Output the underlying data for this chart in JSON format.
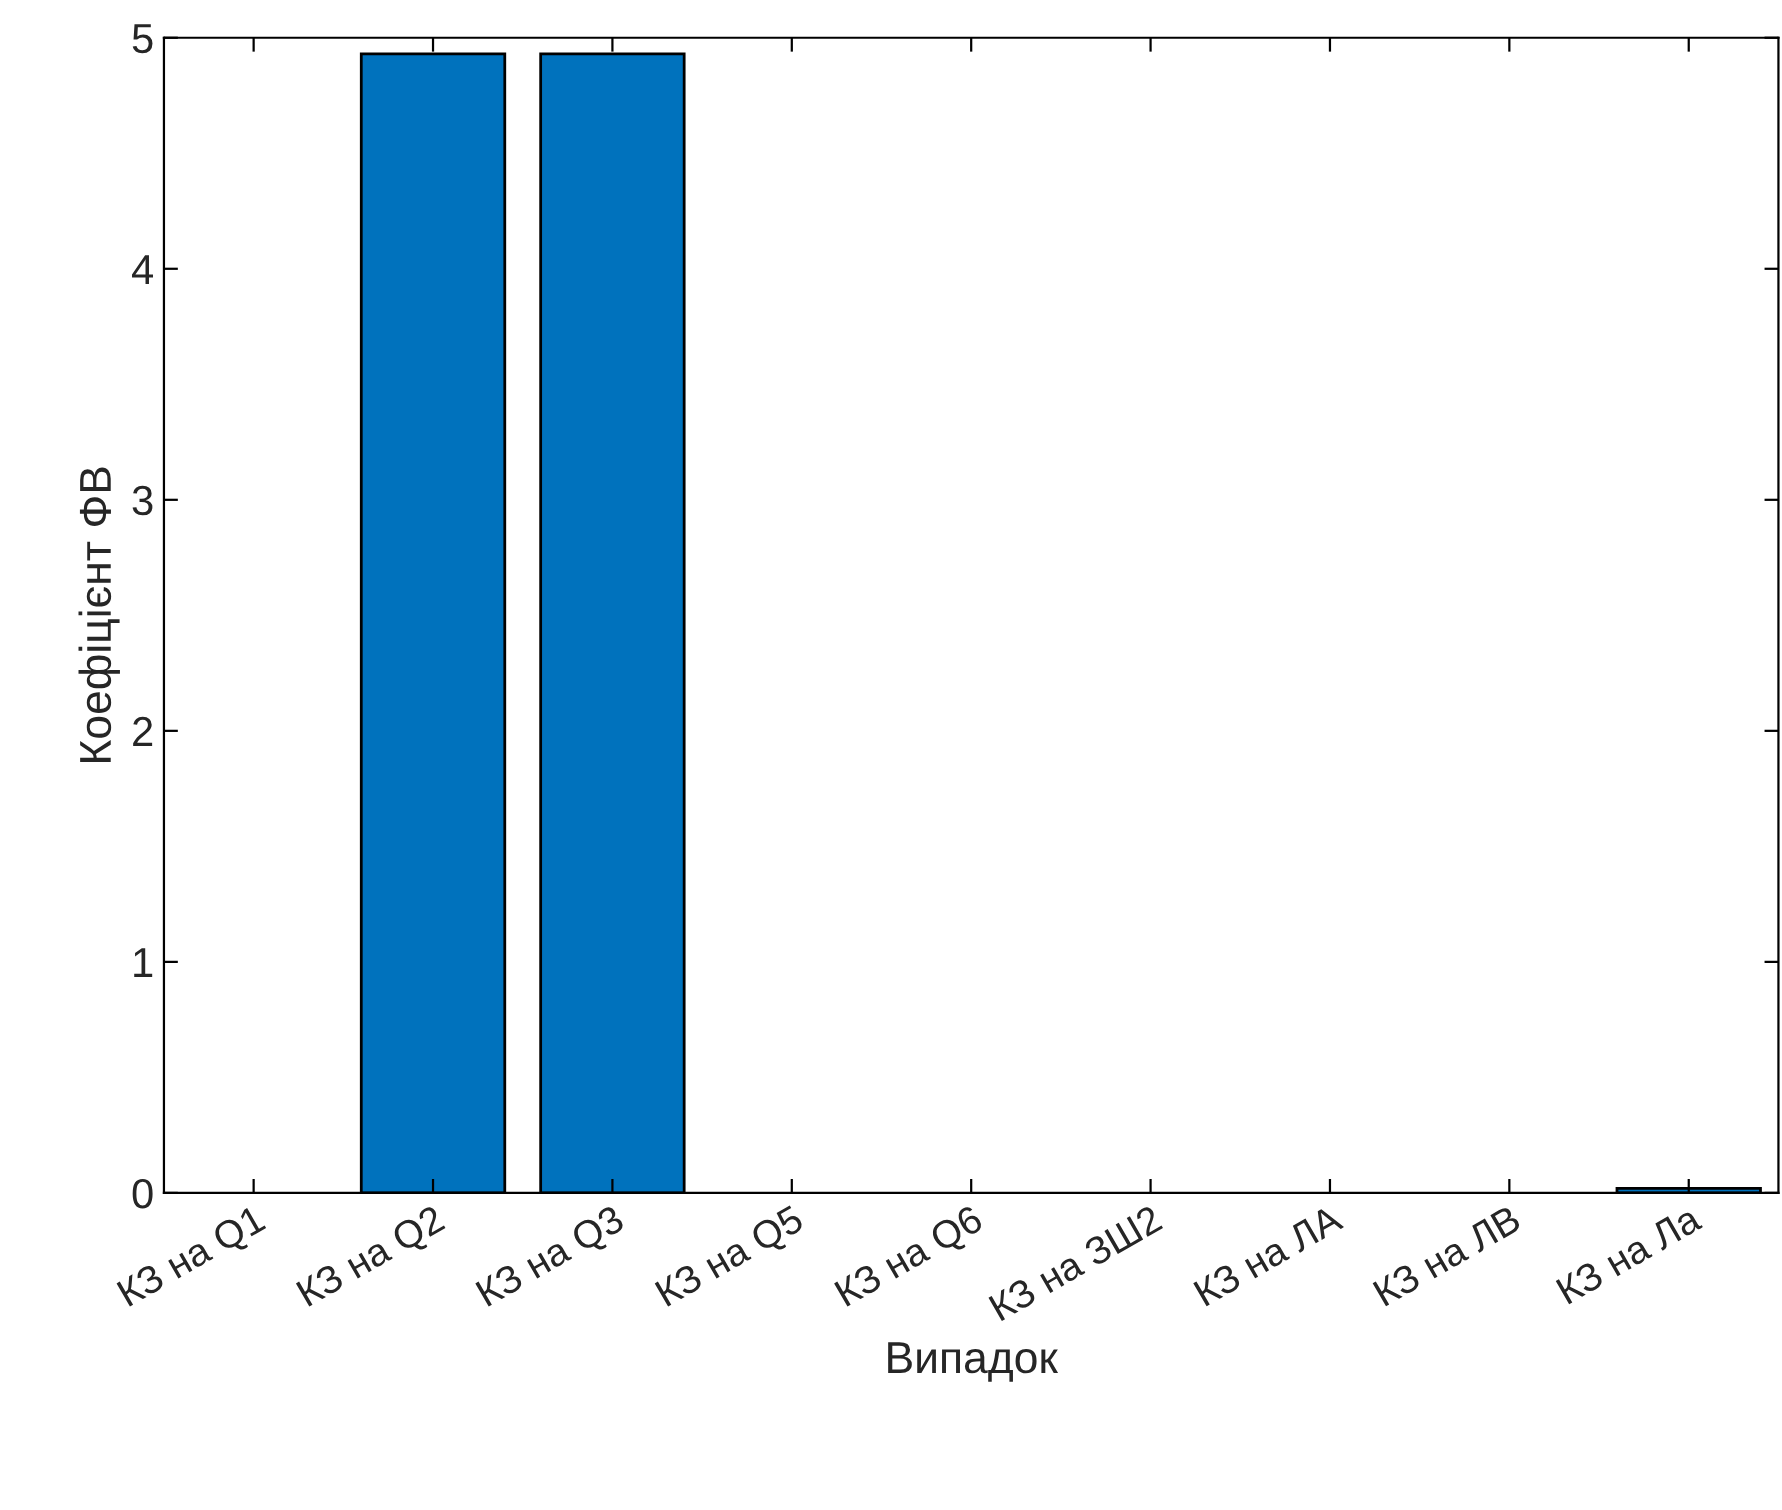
{
  "chart_data": {
    "type": "bar",
    "xlabel": "Випадок",
    "ylabel": "Коефіцієнт ФВ",
    "categories": [
      "КЗ на Q1",
      "КЗ на Q2",
      "КЗ на Q3",
      "КЗ на Q5",
      "КЗ на Q6",
      "КЗ на ЗШ2",
      "КЗ на ЛА",
      "КЗ на ЛВ",
      "КЗ на Ла"
    ],
    "values": [
      0,
      4.93,
      4.93,
      0,
      0,
      0,
      0,
      0,
      0.02
    ],
    "color": "#0072bd",
    "ylim": [
      0,
      5
    ],
    "yticks": [
      0,
      1,
      2,
      3,
      4,
      5
    ],
    "grid": false,
    "legend": false
  }
}
